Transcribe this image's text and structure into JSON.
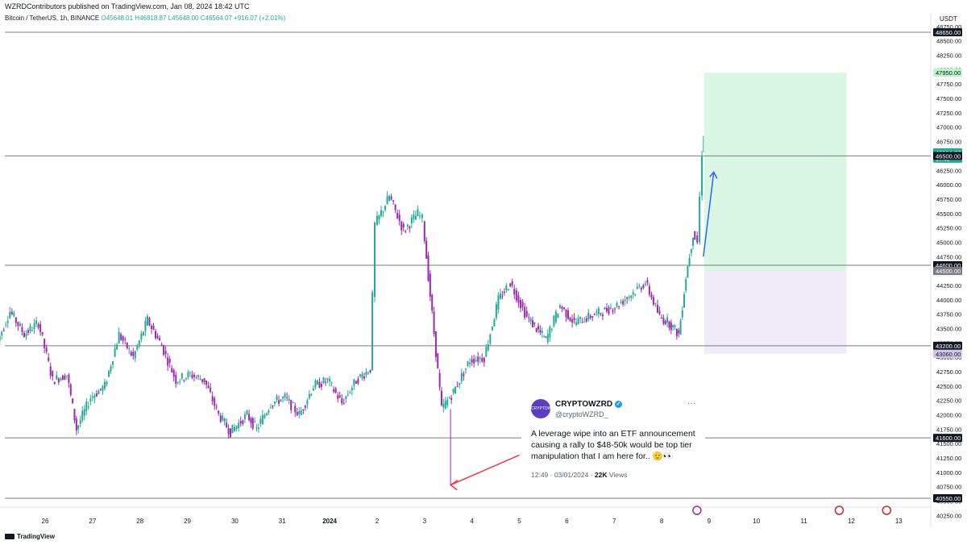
{
  "header": {
    "published_by": "WZRDContributors published on TradingView.com, Jan 08, 2024 18:42 UTC",
    "currency": "USDT"
  },
  "symbol": {
    "name": "Bitcoin / TetherUS, 1h, BINANCE",
    "open": "O45648.01",
    "high": "H46818.87",
    "low": "L45648.00",
    "close": "C46564.07",
    "change": "+916.07 (+2.01%)"
  },
  "chart_data": {
    "type": "candlestick",
    "x_axis_labels": [
      {
        "day": 26,
        "label": "26"
      },
      {
        "day": 27,
        "label": "27"
      },
      {
        "day": 28,
        "label": "28"
      },
      {
        "day": 29,
        "label": "29"
      },
      {
        "day": 30,
        "label": "30"
      },
      {
        "day": 31,
        "label": "31"
      },
      {
        "day": 32,
        "label": "2024"
      },
      {
        "day": 33,
        "label": "2"
      },
      {
        "day": 34,
        "label": "3"
      },
      {
        "day": 35,
        "label": "4"
      },
      {
        "day": 36,
        "label": "5"
      },
      {
        "day": 37,
        "label": "6"
      },
      {
        "day": 38,
        "label": "7"
      },
      {
        "day": 39,
        "label": "8"
      },
      {
        "day": 40,
        "label": "9"
      },
      {
        "day": 41,
        "label": "10"
      },
      {
        "day": 42,
        "label": "11"
      },
      {
        "day": 43,
        "label": "12"
      },
      {
        "day": 44,
        "label": "13"
      }
    ],
    "y_ticks": [
      40250,
      40500,
      40750,
      41000,
      41250,
      41500,
      41750,
      42000,
      42250,
      42500,
      42750,
      43000,
      43250,
      43500,
      43750,
      44000,
      44250,
      44500,
      44750,
      45000,
      45250,
      45500,
      45750,
      46000,
      46250,
      46500,
      46750,
      47000,
      47250,
      47500,
      47750,
      48000,
      48250,
      48500,
      48750
    ],
    "ylim": [
      40180,
      49020
    ],
    "horizontal_levels": [
      48650,
      46500,
      44600,
      43200,
      41600,
      40550
    ],
    "price_labels": [
      {
        "value": 48650,
        "text": "48650.00",
        "style": "level"
      },
      {
        "value": 47950,
        "text": "47950.00",
        "style": "target"
      },
      {
        "value": 46564.07,
        "text": "46564.07",
        "style": "current"
      },
      {
        "value": 46500,
        "text": "46500.00",
        "style": "level"
      },
      {
        "value": 44600,
        "text": "44600.00",
        "style": "level"
      },
      {
        "value": 44500,
        "text": "44500.00",
        "style": "entry"
      },
      {
        "value": 43200,
        "text": "43200.00",
        "style": "level"
      },
      {
        "value": 43060,
        "text": "43060.00",
        "style": "stop"
      },
      {
        "value": 41600,
        "text": "41600.00",
        "style": "level"
      },
      {
        "value": 40550,
        "text": "40550.00",
        "style": "level"
      }
    ],
    "current_price": 46564.07,
    "countdown": "17:41",
    "position": {
      "start_day": 39.9,
      "end_day": 42.9,
      "entry": 44500,
      "target": 47950,
      "stop": 43060
    },
    "trend_arrow": {
      "from": [
        39.88,
        44750
      ],
      "to": [
        40.1,
        46220
      ]
    },
    "red_arrow": {
      "from": [
        36.0,
        41300
      ],
      "to": [
        34.55,
        40780
      ]
    },
    "event_icons": [
      40.0,
      43.0,
      44.0
    ],
    "price_path": [
      [
        25.0,
        43200
      ],
      [
        25.3,
        43800
      ],
      [
        25.6,
        43400
      ],
      [
        25.9,
        43600
      ],
      [
        26.2,
        42600
      ],
      [
        26.5,
        42700
      ],
      [
        26.7,
        41750
      ],
      [
        27.0,
        42300
      ],
      [
        27.3,
        42500
      ],
      [
        27.6,
        43400
      ],
      [
        27.9,
        43000
      ],
      [
        28.2,
        43650
      ],
      [
        28.5,
        43200
      ],
      [
        28.8,
        42600
      ],
      [
        29.1,
        42700
      ],
      [
        29.4,
        42600
      ],
      [
        29.7,
        42000
      ],
      [
        29.95,
        41700
      ],
      [
        30.3,
        42000
      ],
      [
        30.5,
        41750
      ],
      [
        30.8,
        42200
      ],
      [
        31.1,
        42300
      ],
      [
        31.4,
        42000
      ],
      [
        31.7,
        42500
      ],
      [
        32.0,
        42600
      ],
      [
        32.3,
        42200
      ],
      [
        32.6,
        42600
      ],
      [
        32.9,
        42800
      ],
      [
        33.0,
        45300
      ],
      [
        33.3,
        45800
      ],
      [
        33.6,
        45200
      ],
      [
        33.9,
        45500
      ],
      [
        34.0,
        45400
      ],
      [
        34.4,
        42100
      ],
      [
        34.65,
        42400
      ],
      [
        35.0,
        42950
      ],
      [
        35.3,
        43000
      ],
      [
        35.6,
        44000
      ],
      [
        35.85,
        44300
      ],
      [
        36.2,
        43700
      ],
      [
        36.6,
        43300
      ],
      [
        36.9,
        43900
      ],
      [
        37.2,
        43600
      ],
      [
        37.5,
        43700
      ],
      [
        37.8,
        43800
      ],
      [
        38.1,
        43900
      ],
      [
        38.4,
        44100
      ],
      [
        38.7,
        44300
      ],
      [
        39.0,
        43700
      ],
      [
        39.2,
        43600
      ],
      [
        39.4,
        43400
      ],
      [
        39.55,
        44400
      ],
      [
        39.7,
        45150
      ],
      [
        39.8,
        45000
      ],
      [
        39.9,
        46564.07
      ]
    ]
  },
  "tweet": {
    "avatar_text": "CRYPTOWZRD",
    "name": "CRYPTOWZRD",
    "handle": "@cryptoWZRD_",
    "more": "···",
    "text": "A leverage wipe into an ETF announcement causing a rally to $48-50k would be top tier manipulation that I am here for.. 🫡👀",
    "time": "12:49 · 03/01/2024 · ",
    "views_count": "22K",
    "views_label": " Views"
  },
  "footer": {
    "brand": "TradingView"
  },
  "colors": {
    "up": "#22ab94",
    "down": "#9c27b0",
    "level": "#787b86",
    "target_zone": "rgba(8,200,80,0.15)",
    "stop_zone": "rgba(126,87,194,0.12)",
    "arrow_blue": "#2962ff",
    "arrow_red": "#f23645"
  }
}
